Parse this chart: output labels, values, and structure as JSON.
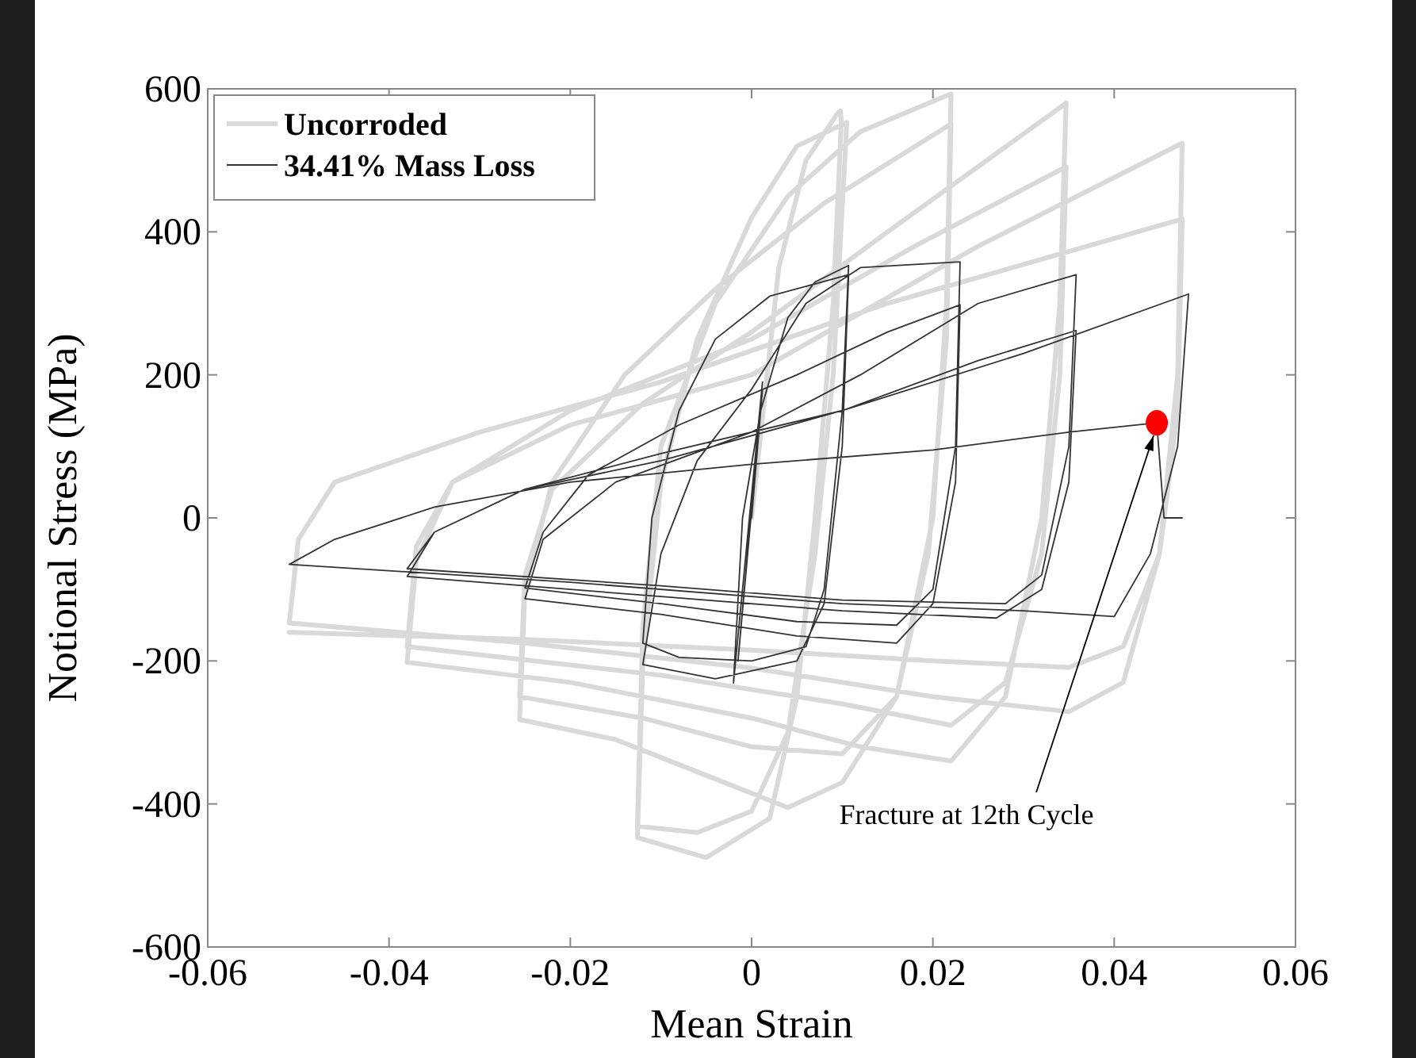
{
  "chart_data": {
    "type": "line",
    "xlabel": "Mean Strain",
    "ylabel": "Notional Stress (MPa)",
    "xlim": [
      -0.06,
      0.06
    ],
    "ylim": [
      -600,
      600
    ],
    "xticks": [
      -0.06,
      -0.04,
      -0.02,
      0,
      0.02,
      0.04,
      0.06
    ],
    "yticks": [
      -600,
      -400,
      -200,
      0,
      200,
      400,
      600
    ],
    "legend": "top left",
    "marker": "none",
    "series": [
      {
        "name": "Uncorroded",
        "color": "#d9d9d9",
        "x": [
          0,
          0.003,
          0.006,
          0.0095,
          0.0098,
          0.0099,
          0.009,
          0.007,
          0.005,
          0.002,
          -0.005,
          -0.0126,
          -0.012,
          -0.01,
          -0.006,
          0,
          0.005,
          0.0105,
          0.009,
          0.007,
          0.004,
          0,
          -0.006,
          -0.0126,
          -0.012,
          -0.01,
          -0.004,
          0.004,
          0.012,
          0.022,
          0.0215,
          0.02,
          0.016,
          0.01,
          0.004,
          -0.005,
          -0.015,
          -0.0256,
          -0.025,
          -0.022,
          -0.014,
          -0.004,
          0.008,
          0.022,
          0.0215,
          0.0195,
          0.016,
          0.01,
          0,
          -0.012,
          -0.0256,
          -0.025,
          -0.022,
          -0.012,
          0,
          0.015,
          0.0347,
          0.034,
          0.032,
          0.028,
          0.022,
          0.012,
          0,
          -0.02,
          -0.038,
          -0.037,
          -0.033,
          -0.02,
          0,
          0.018,
          0.0347,
          0.034,
          0.032,
          0.028,
          0.022,
          0.01,
          -0.01,
          -0.038,
          -0.037,
          -0.033,
          -0.02,
          0,
          0.025,
          0.0475,
          0.047,
          0.045,
          0.041,
          0.035,
          0.02,
          0,
          -0.025,
          -0.051,
          -0.05,
          -0.046,
          -0.03,
          -0.01,
          0.015,
          0.0475,
          0.047,
          0.045,
          0.041,
          0.035,
          0.02,
          0,
          -0.025,
          -0.051
        ],
        "values": [
          0,
          350,
          500,
          566,
          569,
          555,
          300,
          0,
          -250,
          -420,
          -475,
          -447,
          -200,
          50,
          250,
          420,
          520,
          553,
          200,
          -50,
          -300,
          -410,
          -440,
          -431,
          -150,
          100,
          300,
          450,
          540,
          593,
          300,
          0,
          -250,
          -370,
          -405,
          -360,
          -310,
          -282,
          -100,
          50,
          200,
          320,
          440,
          551,
          250,
          -50,
          -250,
          -330,
          -320,
          -280,
          -250,
          -80,
          40,
          160,
          260,
          400,
          580,
          300,
          0,
          -250,
          -340,
          -320,
          -280,
          -230,
          -202,
          -60,
          50,
          150,
          250,
          380,
          491,
          200,
          -50,
          -230,
          -290,
          -260,
          -220,
          -180,
          -40,
          50,
          130,
          200,
          380,
          524,
          200,
          -50,
          -230,
          -271,
          -250,
          -210,
          -175,
          -147,
          -30,
          50,
          120,
          190,
          300,
          418,
          150,
          -50,
          -180,
          -209,
          -200,
          -185,
          -170,
          -160
        ]
      },
      {
        "name": "34.41% Mass Loss",
        "color": "#333333",
        "x": [
          0,
          0.0012,
          -0.0015,
          0.0012,
          -0.002,
          -0.001,
          0.001,
          0.004,
          0.007,
          0.0107,
          0.01,
          0.008,
          0.006,
          0,
          -0.008,
          -0.012,
          -0.011,
          -0.008,
          -0.004,
          0.002,
          0.0107,
          0.01,
          0.008,
          0.005,
          -0.004,
          -0.012,
          -0.01,
          -0.006,
          0,
          0.006,
          0.012,
          0.023,
          0.0225,
          0.02,
          0.016,
          0.005,
          -0.01,
          -0.025,
          -0.023,
          -0.018,
          -0.008,
          0.005,
          0.015,
          0.023,
          0.0225,
          0.02,
          0.016,
          0.005,
          -0.01,
          -0.025,
          -0.023,
          -0.015,
          0,
          0.012,
          0.025,
          0.0358,
          0.035,
          0.032,
          0.028,
          0.01,
          -0.01,
          -0.038,
          -0.035,
          -0.025,
          -0.01,
          0.01,
          0.025,
          0.0358,
          0.035,
          0.032,
          0.027,
          0.01,
          -0.01,
          -0.038,
          -0.035,
          -0.025,
          -0.01,
          0.01,
          0.03,
          0.0482,
          0.047,
          0.044,
          0.04,
          0.03,
          0.01,
          -0.02,
          -0.051,
          -0.046,
          -0.035,
          -0.02,
          0,
          0.02,
          0.035,
          0.0447,
          0.0455,
          0.0475
        ],
        "values": [
          0,
          180,
          -200,
          190,
          -231,
          0,
          150,
          280,
          330,
          353,
          150,
          -100,
          -180,
          -200,
          -195,
          -175,
          0,
          150,
          250,
          310,
          340,
          100,
          -120,
          -200,
          -225,
          -205,
          -50,
          80,
          180,
          300,
          350,
          358,
          100,
          -100,
          -150,
          -145,
          -120,
          -98,
          -20,
          60,
          130,
          200,
          260,
          298,
          50,
          -120,
          -175,
          -165,
          -135,
          -113,
          -30,
          50,
          120,
          200,
          300,
          340,
          100,
          -80,
          -120,
          -115,
          -95,
          -71,
          -20,
          40,
          80,
          150,
          220,
          262,
          50,
          -100,
          -140,
          -130,
          -110,
          -82,
          -20,
          40,
          90,
          150,
          230,
          313,
          100,
          -50,
          -138,
          -130,
          -120,
          -90,
          -65,
          -30,
          15,
          50,
          75,
          95,
          120,
          133,
          0,
          0
        ]
      },
      {
        "type": "scatter",
        "color": "#ff0000",
        "marker": "circle",
        "x": [
          0.0447
        ],
        "values": [
          133
        ]
      }
    ],
    "annotations": [
      {
        "text": "Fracture at 12th Cycle",
        "x": 0.0447,
        "y": 133
      }
    ]
  }
}
